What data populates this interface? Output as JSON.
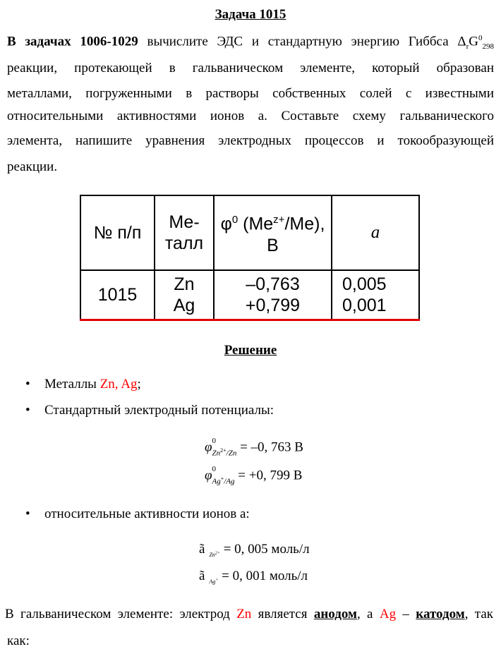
{
  "title": "Задача 1015",
  "intro": {
    "bold_lead": "В задачах 1006-1029",
    "line1_rest": " вычислите ЭДС и стандартную энергию Гиббса Δ",
    "delta_sub": "r",
    "g_symbol": "G",
    "g_sup": "0",
    "g_sub": "298",
    "lines": [
      "реакции, протекающей в гальваническом элементе, который образован",
      "металлами, погруженными в растворы собственных солей с известными",
      "относительными активностями ионов a. Составьте схему гальванического",
      "элемента, напишите уравнения электродных процессов и токообразующей",
      "реакции."
    ]
  },
  "table": {
    "headers": {
      "num": "№ п/п",
      "metal_1": "Ме-",
      "metal_2": "талл",
      "phi_a": "φ",
      "phi_sup": "0",
      "phi_b": " (Me",
      "phi_sup2": "z+",
      "phi_c": "/Me),",
      "phi_unit": "В",
      "a": "a"
    },
    "row": {
      "num": "1015",
      "metals": [
        "Zn",
        "Ag"
      ],
      "potentials": [
        "–0,763",
        "+0,799"
      ],
      "activities": [
        "0,005",
        "0,001"
      ]
    }
  },
  "solution_title": "Решение",
  "bullets": {
    "b1_text": "Металлы ",
    "b1_red": "Zn, Ag",
    "b1_end": ";",
    "b2_text": "Стандартный электродный потенциалы:",
    "b3_text": "относительные активности ионов a:"
  },
  "formulas": {
    "phi": "φ",
    "sup0": "0",
    "zn_sub": "Zn",
    "zn_charge": "2+",
    "zn_sub2": "/Zn",
    "zn_value": " = –0, 763 В",
    "ag_sub": "Ag",
    "ag_charge": "+",
    "ag_sub2": "/Ag",
    "ag_value": " = +0, 799 В",
    "a_symbol": "ã",
    "a_zn_value": " = 0, 005 моль/л",
    "a_ag_value": " = 0, 001 моль/л"
  },
  "conclusion": {
    "p1": "В гальваническом элементе: электрод ",
    "zn": "Zn",
    "p2": " является ",
    "anode": "анодом",
    "p3": ", а ",
    "ag": "Ag",
    "p4": " – ",
    "cathode": "катодом",
    "p5": ", так",
    "line2": "как:"
  },
  "colors": {
    "highlight": "#ff0000",
    "table_bottom": "#e00000"
  }
}
